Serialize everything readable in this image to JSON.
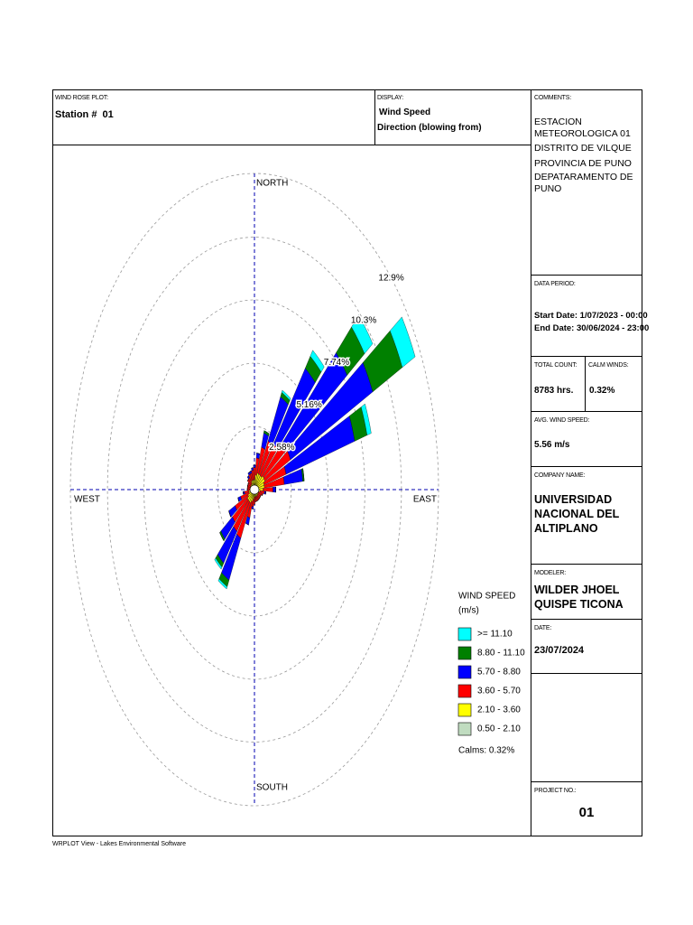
{
  "header": {
    "plot_label": "WIND ROSE PLOT:",
    "station": "Station #  01",
    "display_label": "DISPLAY:",
    "display_lines": [
      "Wind Speed",
      "Direction (blowing from)"
    ]
  },
  "comments": {
    "label": "COMMENTS:",
    "lines": [
      "ESTACION METEOROLOGICA 01",
      "DISTRITO DE VILQUE",
      "PROVINCIA DE PUNO",
      "DEPATARAMENTO DE PUNO"
    ]
  },
  "data_period": {
    "label": "DATA PERIOD:",
    "start": "Start Date: 1/07/2023 - 00:00",
    "end": "End Date: 30/06/2024 - 23:00"
  },
  "total_count": {
    "label": "TOTAL COUNT:",
    "value": "8783 hrs."
  },
  "calm_winds": {
    "label": "CALM WINDS:",
    "value": "0.32%"
  },
  "avg_wind_speed": {
    "label": "AVG. WIND SPEED:",
    "value": "5.56 m/s"
  },
  "company": {
    "label": "COMPANY NAME:",
    "value": "UNIVERSIDAD NACIONAL DEL ALTIPLANO"
  },
  "modeler": {
    "label": "MODELER:",
    "value": "WILDER JHOEL QUISPE TICONA"
  },
  "date": {
    "label": "DATE:",
    "value": "23/07/2024"
  },
  "project": {
    "label": "PROJECT NO.:",
    "value": "01"
  },
  "footer": "WRPLOT View - Lakes Environmental Software",
  "chart_data": {
    "type": "windrose",
    "compass_labels": [
      "NORTH",
      "EAST",
      "SOUTH",
      "WEST"
    ],
    "directions": [
      0,
      10,
      20,
      30,
      40,
      50,
      60,
      70,
      80,
      90,
      100,
      110,
      120,
      130,
      140,
      150,
      160,
      170,
      180,
      190,
      200,
      210,
      220,
      230,
      240,
      250,
      260,
      270,
      280,
      290,
      300,
      310,
      320,
      330,
      340,
      350
    ],
    "rlim": [
      0,
      12.9
    ],
    "rticks": [
      {
        "value": 2.58,
        "label": "2.58%"
      },
      {
        "value": 5.16,
        "label": "5.16%"
      },
      {
        "value": 7.74,
        "label": "7.74%"
      },
      {
        "value": 10.3,
        "label": "10.3%"
      },
      {
        "value": 12.9,
        "label": "12.9%"
      }
    ],
    "legend_title": [
      "WIND SPEED",
      "(m/s)"
    ],
    "calms": 0.32,
    "calms_label": "Calms: 0.32%",
    "series": [
      {
        "name": ">= 11.10",
        "color": "#00ffff",
        "values": [
          0,
          0,
          0,
          0.1,
          0.3,
          0.7,
          1.0,
          0.3,
          0,
          0,
          0,
          0,
          0,
          0,
          0,
          0,
          0,
          0,
          0,
          0,
          0,
          0.1,
          0.1,
          0,
          0,
          0,
          0,
          0,
          0,
          0,
          0,
          0,
          0,
          0,
          0,
          0
        ]
      },
      {
        "name": "8.80 - 11.10",
        "color": "#008000",
        "values": [
          0,
          0,
          0.1,
          0.2,
          0.6,
          1.5,
          2.3,
          0.9,
          0.1,
          0,
          0,
          0,
          0,
          0,
          0,
          0,
          0,
          0,
          0,
          0,
          0,
          0.3,
          0.2,
          0.1,
          0,
          0,
          0,
          0,
          0,
          0,
          0,
          0,
          0,
          0,
          0,
          0
        ]
      },
      {
        "name": "5.70 - 8.80",
        "color": "#0000ff",
        "values": [
          0.1,
          0.2,
          0.6,
          2.0,
          3.8,
          5.3,
          6.4,
          5.0,
          1.3,
          0.2,
          0.1,
          0,
          0,
          0,
          0,
          0,
          0,
          0,
          0,
          0.1,
          0.3,
          1.9,
          1.6,
          1.0,
          0.5,
          0.2,
          0.1,
          0,
          0,
          0,
          0,
          0,
          0.1,
          0.1,
          0.1,
          0.1
        ]
      },
      {
        "name": "3.60 - 5.70",
        "color": "#ff0000",
        "values": [
          0.5,
          0.7,
          1.1,
          1.5,
          1.6,
          1.9,
          2.0,
          1.6,
          1.4,
          0.7,
          0.3,
          0.3,
          0.2,
          0.2,
          0.2,
          0.2,
          0.2,
          0.2,
          0.3,
          0.3,
          0.7,
          1.6,
          1.5,
          1.3,
          1.0,
          0.6,
          0.3,
          0.2,
          0.2,
          0.2,
          0.2,
          0.3,
          0.3,
          0.3,
          0.3,
          0.4
        ]
      },
      {
        "name": "2.10 - 3.60",
        "color": "#ffff00",
        "values": [
          0.3,
          0.4,
          0.5,
          0.5,
          0.5,
          0.6,
          0.6,
          0.5,
          0.5,
          0.4,
          0.3,
          0.2,
          0.2,
          0.2,
          0.2,
          0.2,
          0.2,
          0.2,
          0.2,
          0.3,
          0.4,
          0.5,
          0.5,
          0.5,
          0.4,
          0.3,
          0.3,
          0.2,
          0.2,
          0.2,
          0.2,
          0.2,
          0.2,
          0.3,
          0.3,
          0.3
        ]
      },
      {
        "name": "0.50 - 2.10",
        "color": "#c0dcc0",
        "values": [
          0.1,
          0.2,
          0.2,
          0.2,
          0.2,
          0.2,
          0.2,
          0.2,
          0.2,
          0.2,
          0.1,
          0.1,
          0.1,
          0.1,
          0.1,
          0.1,
          0.1,
          0.1,
          0.1,
          0.1,
          0.1,
          0.1,
          0.1,
          0.1,
          0.1,
          0.1,
          0.1,
          0.1,
          0.1,
          0.1,
          0.1,
          0.1,
          0.1,
          0.1,
          0.1,
          0.1
        ]
      }
    ]
  }
}
